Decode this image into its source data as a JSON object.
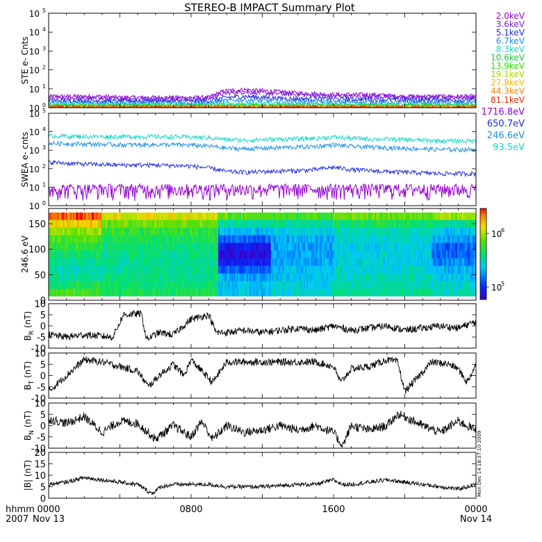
{
  "title": "STEREO-B IMPACT Summary Plot",
  "stamp": "Mon Dec 14 18:37:10 2009",
  "time_axis": {
    "corner_line1": "hhmm",
    "corner_line2": "2007",
    "ticks": [
      {
        "hours": 0,
        "line1": "0000",
        "line2": "Nov 13"
      },
      {
        "hours": 8,
        "line1": "0800",
        "line2": ""
      },
      {
        "hours": 16,
        "line1": "1600",
        "line2": ""
      },
      {
        "hours": 24,
        "line1": "0000",
        "line2": "Nov 14"
      }
    ],
    "range_hours": [
      0,
      24
    ]
  },
  "colors": {
    "ste_channels": [
      "#9400d3",
      "#7b1fd8",
      "#1f2be0",
      "#1d8fe8",
      "#16d6c8",
      "#1ec23a",
      "#2cd800",
      "#a6d800",
      "#f0b800",
      "#f08800",
      "#e02a00"
    ],
    "swea_channels": [
      "#9400d3",
      "#1f2be0",
      "#1d8fe8",
      "#16d6c8"
    ],
    "frame": "#000000",
    "trace": "#000000"
  },
  "chart_data": [
    {
      "id": "ste",
      "type": "line",
      "ylabel": "STE e- Cnts",
      "yscale": "log",
      "ylim": [
        1,
        100000
      ],
      "ytick_exponents": [
        0,
        1,
        2,
        3,
        4,
        5
      ],
      "series": [
        {
          "name": "2.0keV",
          "levels": [
            4,
            4,
            4,
            4,
            3.5,
            3.5,
            3.5,
            3.5,
            3.5,
            3.5,
            8,
            9,
            8,
            7,
            6,
            5.5,
            5,
            5,
            5,
            4.5,
            4,
            4,
            4,
            4,
            4
          ]
        },
        {
          "name": "3.6keV",
          "levels": [
            3.2,
            3.2,
            3.2,
            3,
            3,
            3,
            3,
            3,
            3,
            3,
            6,
            7,
            6,
            5.5,
            5,
            4.5,
            4.2,
            4,
            4,
            3.8,
            3.5,
            3.5,
            3.5,
            3.5,
            3.5
          ]
        },
        {
          "name": "5.1keV",
          "levels": [
            2.4,
            2.4,
            2.4,
            2.3,
            2.3,
            2.3,
            2.3,
            2.3,
            2.3,
            2.3,
            3.5,
            4,
            3.5,
            3.2,
            3,
            3,
            3,
            2.8,
            2.8,
            2.7,
            2.6,
            2.6,
            2.6,
            2.5,
            2.5
          ]
        },
        {
          "name": "6.7keV",
          "levels": [
            1.9,
            1.9,
            1.9,
            1.8,
            1.8,
            1.8,
            1.8,
            1.8,
            1.8,
            1.8,
            2.4,
            2.6,
            2.4,
            2.2,
            2.1,
            2.1,
            2,
            2,
            2,
            1.9,
            1.9,
            1.9,
            1.9,
            1.9,
            1.9
          ]
        },
        {
          "name": "8.3keV",
          "levels": [
            1.5,
            1.5,
            1.5,
            1.5,
            1.5,
            1.5,
            1.5,
            1.5,
            1.5,
            1.5,
            1.6,
            1.7,
            1.6,
            1.6,
            1.5,
            1.5,
            1.5,
            1.5,
            1.5,
            1.5,
            1.5,
            1.5,
            1.5,
            1.5,
            1.5
          ]
        },
        {
          "name": "10.6keV",
          "levels": [
            1.3,
            1.3,
            1.3,
            1.3,
            1.3,
            1.3,
            1.3,
            1.3,
            1.3,
            1.3,
            1.3,
            1.3,
            1.3,
            1.3,
            1.3,
            1.3,
            1.3,
            1.3,
            1.3,
            1.3,
            1.3,
            1.3,
            1.3,
            1.3,
            1.3
          ]
        },
        {
          "name": "13.9keV",
          "levels": [
            1.2,
            1.2,
            1.2,
            1.2,
            1.2,
            1.2,
            1.2,
            1.2,
            1.2,
            1.2,
            1.2,
            1.2,
            1.2,
            1.2,
            1.2,
            1.2,
            1.2,
            1.2,
            1.2,
            1.2,
            1.2,
            1.2,
            1.2,
            1.2,
            1.2
          ]
        },
        {
          "name": "19.1keV",
          "levels": [
            1.1,
            1.1,
            1.1,
            1.1,
            1.1,
            1.1,
            1.1,
            1.1,
            1.1,
            1.1,
            1.1,
            1.1,
            1.1,
            1.1,
            1.1,
            1.1,
            1.1,
            1.1,
            1.1,
            1.1,
            1.1,
            1.1,
            1.1,
            1.1,
            1.1
          ]
        },
        {
          "name": "27.8keV",
          "levels": [
            1.05,
            1.05,
            1.05,
            1.05,
            1.05,
            1.05,
            1.05,
            1.05,
            1.05,
            1.05,
            1.05,
            1.05,
            1.05,
            1.05,
            1.05,
            1.05,
            1.05,
            1.05,
            1.05,
            1.05,
            1.05,
            1.05,
            1.05,
            1.05,
            1.05
          ]
        },
        {
          "name": "44.3keV",
          "levels": [
            1.02,
            1.02,
            1.02,
            1.02,
            1.02,
            1.02,
            1.02,
            1.02,
            1.02,
            1.02,
            1.02,
            1.02,
            1.02,
            1.02,
            1.02,
            1.02,
            1.02,
            1.02,
            1.02,
            1.02,
            1.02,
            1.02,
            1.02,
            1.02,
            1.02
          ]
        },
        {
          "name": "81.1keV",
          "levels": [
            1.01,
            1.01,
            1.01,
            1.01,
            1.01,
            1.01,
            1.01,
            1.01,
            1.01,
            1.01,
            1.01,
            1.01,
            1.01,
            1.01,
            1.01,
            1.01,
            1.01,
            1.01,
            1.01,
            1.01,
            1.01,
            1.01,
            1.01,
            1.01,
            1.01
          ]
        }
      ]
    },
    {
      "id": "swea",
      "type": "line",
      "ylabel": "SWEA e- cnts",
      "yscale": "log",
      "ylim": [
        1,
        100000
      ],
      "ytick_exponents": [
        0,
        1,
        2,
        3,
        4,
        5
      ],
      "series": [
        {
          "name": "1716.8eV",
          "levels": [
            6,
            6,
            6,
            6,
            6,
            6,
            6,
            6,
            6,
            6,
            6,
            6,
            6,
            6,
            6,
            6,
            6,
            6,
            6,
            6,
            6,
            6,
            6,
            6,
            6
          ]
        },
        {
          "name": "650.7eV",
          "levels": [
            230,
            200,
            180,
            170,
            160,
            160,
            160,
            150,
            140,
            110,
            70,
            65,
            70,
            75,
            80,
            90,
            120,
            90,
            80,
            70,
            65,
            60,
            55,
            55,
            55
          ]
        },
        {
          "name": "246.6eV",
          "levels": [
            2400,
            2300,
            2200,
            2100,
            2000,
            2000,
            2000,
            2000,
            1900,
            1700,
            1300,
            1200,
            1300,
            1400,
            1500,
            1600,
            2000,
            1600,
            1500,
            1400,
            1300,
            1200,
            1100,
            1100,
            1100
          ]
        },
        {
          "name": "93.5eV",
          "levels": [
            6000,
            5800,
            5600,
            5500,
            5500,
            5500,
            5500,
            5400,
            5200,
            4800,
            3800,
            3500,
            3800,
            4000,
            4200,
            4400,
            5200,
            4500,
            4200,
            4000,
            3700,
            3500,
            3300,
            3200,
            3200
          ]
        }
      ]
    },
    {
      "id": "pad",
      "type": "heatmap",
      "ylabel": "246.6 eV",
      "ylim": [
        0,
        180
      ],
      "yticks": [
        0,
        50,
        100,
        150
      ],
      "colorbar_ticks": [
        {
          "mantissa": "10",
          "exp": "6"
        },
        {
          "mantissa": "10",
          "exp": "5"
        }
      ],
      "pitch_bins": [
        165,
        150,
        135,
        120,
        105,
        90,
        75,
        60,
        45,
        30,
        15
      ],
      "hour_columns": [
        {
          "h": [
            0,
            3
          ],
          "v": [
            0.95,
            0.82,
            0.7,
            0.62,
            0.56,
            0.5,
            0.46,
            0.44,
            0.46,
            0.52,
            0.6
          ]
        },
        {
          "h": [
            3,
            9.5
          ],
          "v": [
            0.78,
            0.66,
            0.58,
            0.54,
            0.5,
            0.48,
            0.47,
            0.47,
            0.48,
            0.5,
            0.54
          ]
        },
        {
          "h": [
            9.5,
            12.5
          ],
          "v": [
            0.62,
            0.44,
            0.34,
            0.22,
            0.08,
            0.05,
            0.1,
            0.22,
            0.3,
            0.34,
            0.36
          ]
        },
        {
          "h": [
            12.5,
            16
          ],
          "v": [
            0.6,
            0.46,
            0.38,
            0.32,
            0.3,
            0.3,
            0.32,
            0.34,
            0.36,
            0.38,
            0.4
          ]
        },
        {
          "h": [
            16,
            21.5
          ],
          "v": [
            0.66,
            0.52,
            0.44,
            0.4,
            0.38,
            0.38,
            0.38,
            0.4,
            0.42,
            0.44,
            0.46
          ]
        },
        {
          "h": [
            21.5,
            24
          ],
          "v": [
            0.72,
            0.48,
            0.36,
            0.3,
            0.22,
            0.22,
            0.26,
            0.32,
            0.36,
            0.4,
            0.44
          ]
        }
      ]
    },
    {
      "id": "br",
      "type": "line",
      "ylabel_main": "B",
      "ylabel_sub": "R",
      "ylabel_tail": "(nT)",
      "ylim": [
        -10,
        10
      ],
      "yticks": [
        -10,
        -5,
        0,
        5,
        10
      ],
      "anchors": [
        [
          0,
          -4
        ],
        [
          1,
          -5
        ],
        [
          2,
          -4
        ],
        [
          3.6,
          -5
        ],
        [
          4.2,
          5
        ],
        [
          5.2,
          5.5
        ],
        [
          5.5,
          -6
        ],
        [
          6.2,
          -3
        ],
        [
          7,
          -4
        ],
        [
          8,
          3
        ],
        [
          9,
          5
        ],
        [
          9.4,
          -3
        ],
        [
          10,
          -3
        ],
        [
          11,
          -2
        ],
        [
          12,
          -3
        ],
        [
          13,
          -2
        ],
        [
          14,
          -1
        ],
        [
          15,
          -2
        ],
        [
          16,
          0
        ],
        [
          17,
          -2
        ],
        [
          18,
          -1
        ],
        [
          19,
          0
        ],
        [
          20,
          -2
        ],
        [
          21,
          -1
        ],
        [
          22,
          0
        ],
        [
          23,
          -1
        ],
        [
          24,
          2
        ]
      ],
      "noise": 1.6
    },
    {
      "id": "bt",
      "type": "line",
      "ylabel_main": "B",
      "ylabel_sub": "T",
      "ylabel_tail": "(nT)",
      "ylim": [
        -10,
        10
      ],
      "yticks": [
        -10,
        -5,
        0,
        5,
        10
      ],
      "anchors": [
        [
          0,
          -7
        ],
        [
          1,
          0
        ],
        [
          2,
          7
        ],
        [
          3,
          6
        ],
        [
          4,
          4
        ],
        [
          5,
          2
        ],
        [
          5.6,
          -5
        ],
        [
          6.2,
          0
        ],
        [
          7,
          5
        ],
        [
          7.6,
          0
        ],
        [
          8,
          7
        ],
        [
          8.6,
          2
        ],
        [
          9.2,
          -3
        ],
        [
          10,
          6
        ],
        [
          12,
          6
        ],
        [
          14,
          6
        ],
        [
          15,
          6
        ],
        [
          16,
          4
        ],
        [
          16.4,
          -3
        ],
        [
          17,
          3
        ],
        [
          18,
          4
        ],
        [
          19,
          7
        ],
        [
          19.6,
          6
        ],
        [
          20,
          -7
        ],
        [
          20.6,
          -2
        ],
        [
          21.5,
          6
        ],
        [
          22.5,
          5
        ],
        [
          23,
          3
        ],
        [
          23.5,
          -3
        ],
        [
          24,
          5
        ]
      ],
      "noise": 1.6
    },
    {
      "id": "bn",
      "type": "line",
      "ylabel_main": "B",
      "ylabel_sub": "N",
      "ylabel_tail": "(nT)",
      "ylim": [
        -10,
        10
      ],
      "yticks": [
        -10,
        -5,
        0,
        5,
        10
      ],
      "anchors": [
        [
          0,
          3
        ],
        [
          1,
          1
        ],
        [
          2,
          4
        ],
        [
          3,
          -3
        ],
        [
          4,
          2
        ],
        [
          5,
          1
        ],
        [
          6,
          -6
        ],
        [
          7,
          0
        ],
        [
          8,
          -5
        ],
        [
          8.6,
          2
        ],
        [
          9.2,
          -6
        ],
        [
          10,
          0
        ],
        [
          11,
          -3
        ],
        [
          12,
          -2
        ],
        [
          13,
          0
        ],
        [
          14,
          -2
        ],
        [
          15,
          0
        ],
        [
          16,
          -3
        ],
        [
          16.5,
          -9
        ],
        [
          17,
          0
        ],
        [
          18,
          -2
        ],
        [
          19,
          0
        ],
        [
          19.6,
          5
        ],
        [
          20,
          4
        ],
        [
          21,
          0
        ],
        [
          22,
          -3
        ],
        [
          23,
          2
        ],
        [
          24,
          -2
        ]
      ],
      "noise": 2.0
    },
    {
      "id": "bmag",
      "type": "line",
      "ylabel_main": "|B|",
      "ylabel_sub": "",
      "ylabel_tail": "(nT)",
      "ylim": [
        0,
        20
      ],
      "yticks": [
        0,
        5,
        10,
        15,
        20
      ],
      "anchors": [
        [
          0,
          6
        ],
        [
          1,
          7
        ],
        [
          2,
          9
        ],
        [
          3,
          8
        ],
        [
          4,
          7
        ],
        [
          5,
          6
        ],
        [
          5.8,
          2
        ],
        [
          6.3,
          5
        ],
        [
          7,
          6
        ],
        [
          8,
          6
        ],
        [
          9,
          6
        ],
        [
          10,
          5
        ],
        [
          12,
          5
        ],
        [
          14,
          6
        ],
        [
          15,
          6
        ],
        [
          16,
          8
        ],
        [
          16.5,
          6
        ],
        [
          17,
          6
        ],
        [
          18,
          7
        ],
        [
          19,
          8
        ],
        [
          20,
          7
        ],
        [
          21,
          6
        ],
        [
          22,
          5
        ],
        [
          23,
          4
        ],
        [
          24,
          6
        ]
      ],
      "noise": 0.9
    }
  ]
}
